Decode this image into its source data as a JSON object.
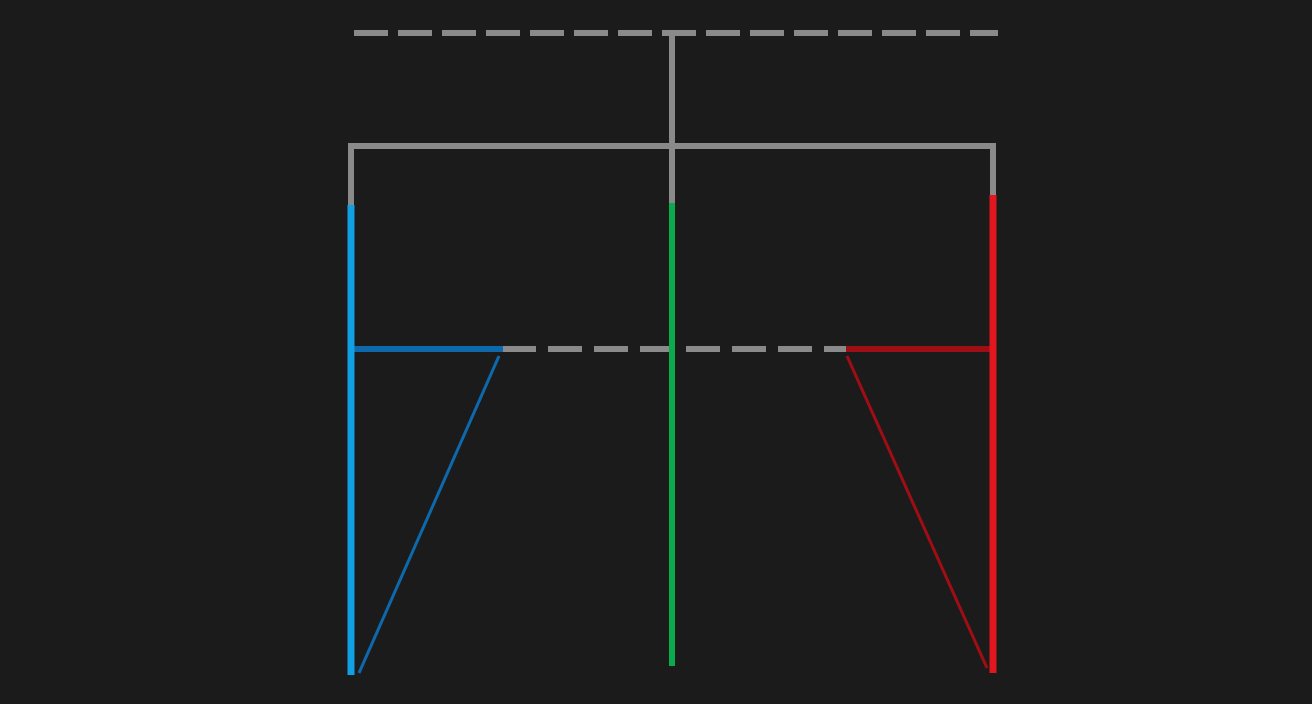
{
  "background": "#1b1b1b",
  "colors": {
    "trunk": "#8a8a8a",
    "left_branch": "#11a0e4",
    "left_stroke": "#0d69ac",
    "middle_branch": "#0aab4c",
    "right_branch": "#e2161e",
    "right_stroke": "#9e0e14"
  },
  "structure": {
    "top_line": "dashed",
    "mid_line": "dashed",
    "branches": [
      "left",
      "middle",
      "right"
    ]
  }
}
